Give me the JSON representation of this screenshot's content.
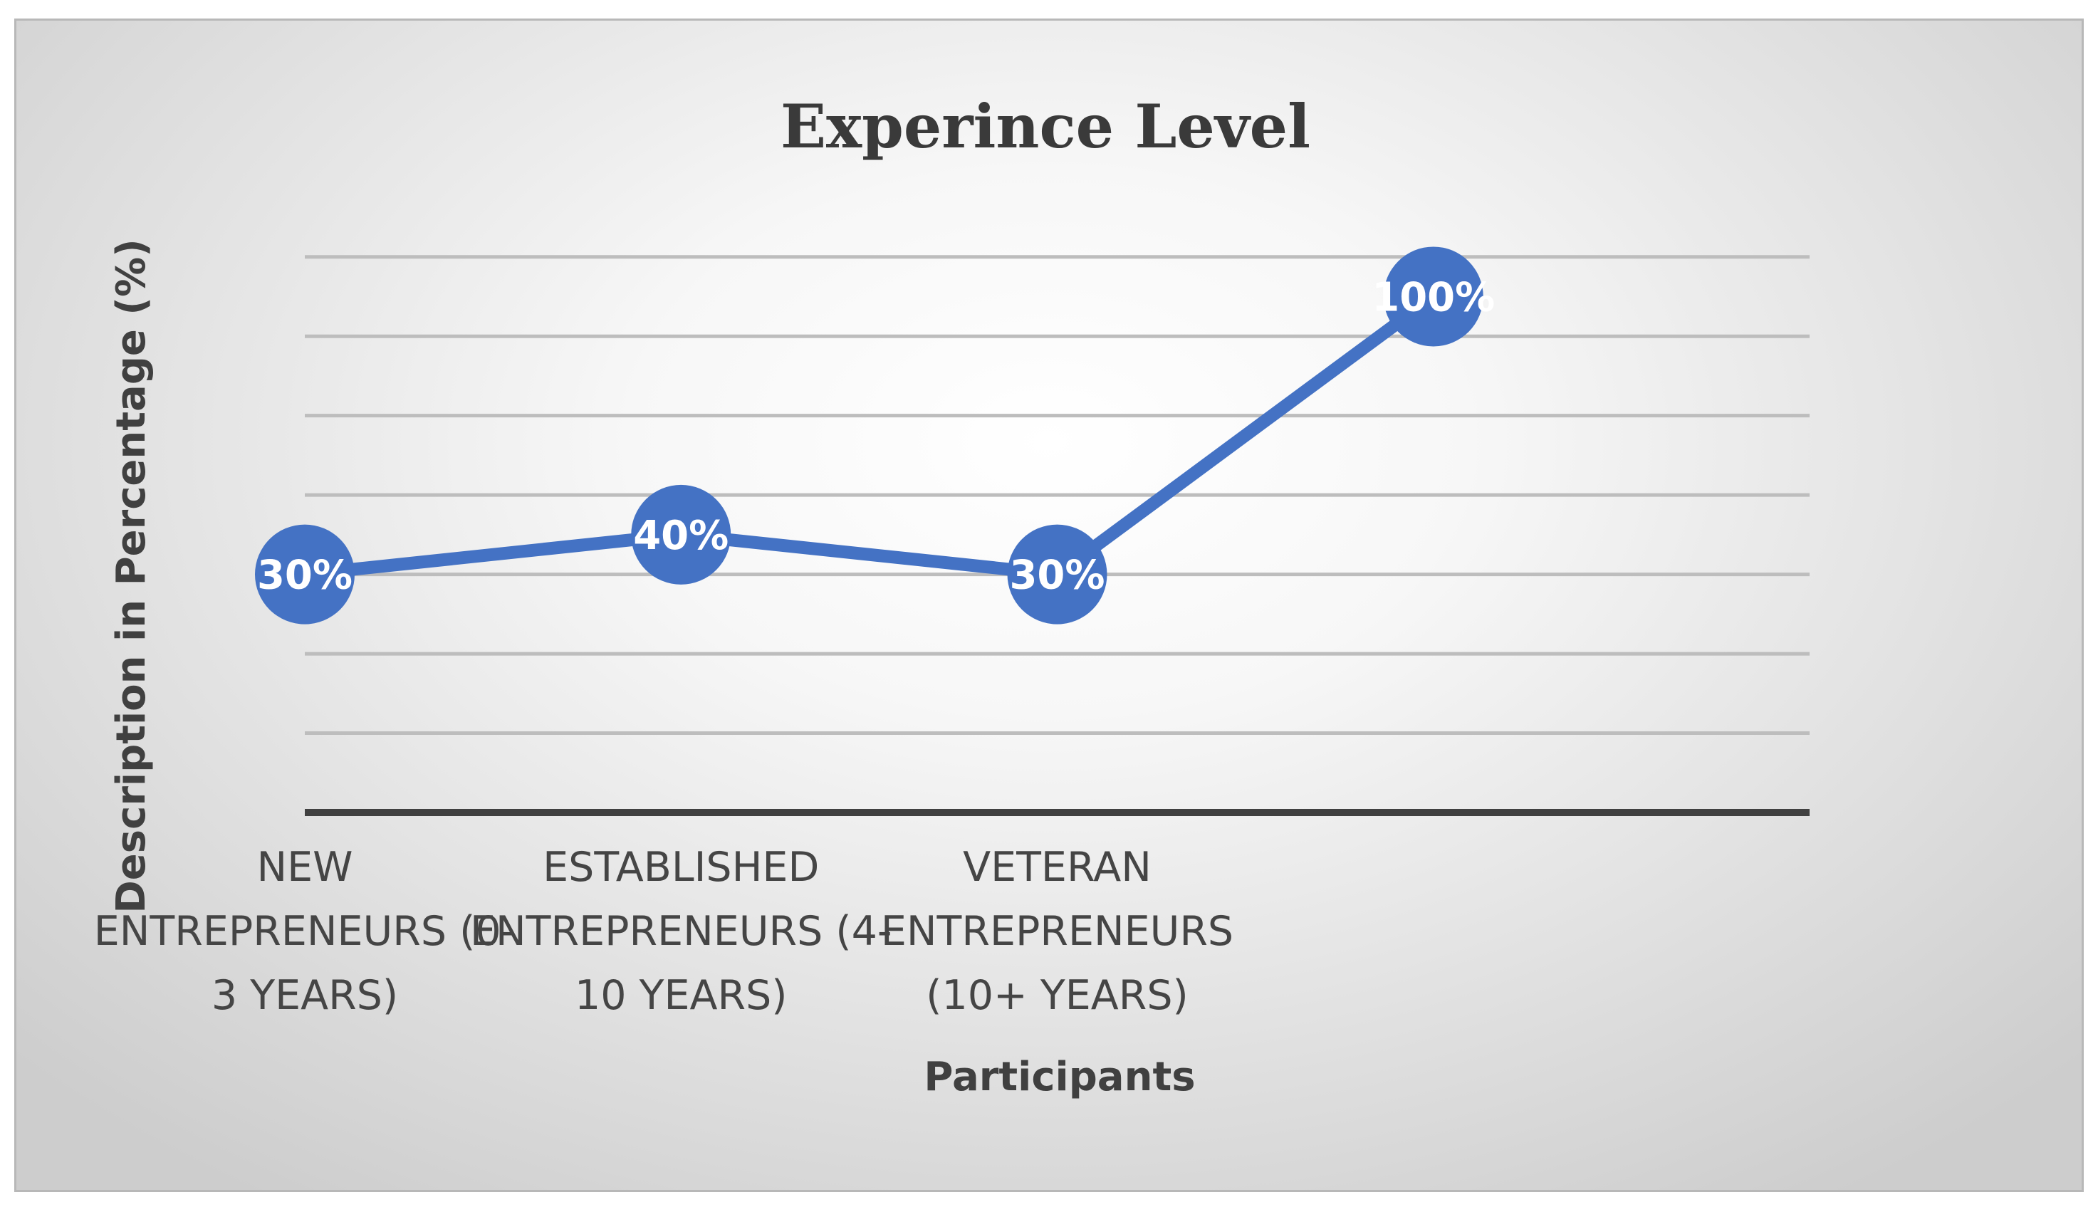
{
  "chart_data": {
    "type": "line",
    "title": "Experince Level",
    "xlabel": "Participants",
    "ylabel": "Description in Percentage (%)",
    "categories": [
      "NEW ENTREPRENEURS (0-3 YEARS)",
      "ESTABLISHED ENTREPRENEURS (4-10 YEARS)",
      "VETERAN ENTREPRENEURS (10+ YEARS)",
      ""
    ],
    "category_lines": [
      [
        "NEW",
        "ENTREPRENEURS (0-",
        "3 YEARS)"
      ],
      [
        "ESTABLISHED",
        "ENTREPRENEURS (4-",
        "10 YEARS)"
      ],
      [
        "VETERAN",
        "ENTREPRENEURS",
        "(10+ YEARS)"
      ],
      []
    ],
    "series": [
      {
        "values": [
          30,
          40,
          30,
          100
        ],
        "data_labels": [
          "30%",
          "40%",
          "30%",
          "100%"
        ],
        "color": "#4472C4"
      }
    ],
    "ylim": [
      -30,
      120
    ],
    "yticks_step": 20,
    "grid": true,
    "legend": "none",
    "colors": {
      "line": "#4472C4",
      "gridline": "#bdbdbd",
      "baseline": "#404040",
      "label_text": "#ffffff"
    }
  }
}
